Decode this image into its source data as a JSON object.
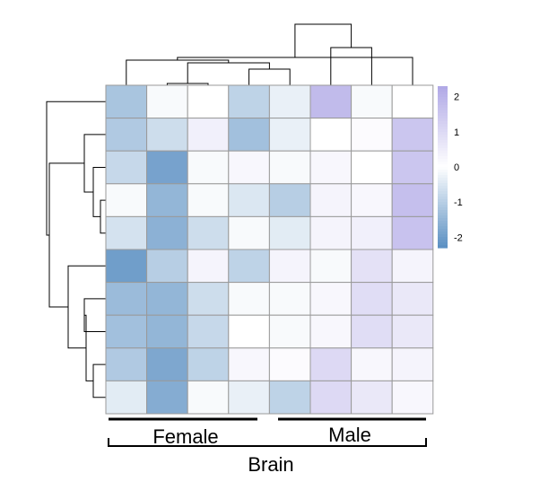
{
  "chart_data": {
    "type": "heatmap",
    "title": "",
    "xlabel": "",
    "ylabel": "",
    "rows": 10,
    "cols": 8,
    "values": [
      [
        -1.2,
        -0.1,
        0.0,
        -0.9,
        -0.3,
        1.8,
        -0.1,
        0.0
      ],
      [
        -1.1,
        -0.7,
        0.4,
        -1.3,
        -0.3,
        0.0,
        0.1,
        1.5
      ],
      [
        -0.8,
        -1.9,
        -0.1,
        0.2,
        -0.1,
        0.2,
        0.0,
        1.5
      ],
      [
        -0.1,
        -1.5,
        -0.1,
        -0.5,
        -1.0,
        0.3,
        0.2,
        1.7
      ],
      [
        -0.6,
        -1.6,
        -0.7,
        -0.1,
        -0.4,
        0.3,
        0.4,
        1.6
      ],
      [
        -2.0,
        -1.0,
        0.3,
        -0.9,
        0.3,
        -0.1,
        0.8,
        0.3
      ],
      [
        -1.4,
        -1.5,
        -0.7,
        -0.1,
        -0.1,
        0.2,
        0.9,
        0.6
      ],
      [
        -1.3,
        -1.5,
        -0.8,
        0.0,
        -0.1,
        0.2,
        0.9,
        0.6
      ],
      [
        -1.1,
        -1.8,
        -0.9,
        0.2,
        0.1,
        1.0,
        0.2,
        0.3
      ],
      [
        -0.4,
        -1.7,
        -0.1,
        -0.3,
        -0.9,
        1.0,
        0.6,
        0.2
      ]
    ],
    "color_scale": {
      "low": "#5a8fc2",
      "mid": "#ffffff",
      "high": "#b0a8e6",
      "range": [
        -2.3,
        2.3
      ],
      "ticks": [
        2,
        1,
        0,
        -1,
        -2
      ],
      "tick_labels": [
        "2",
        "1",
        "0",
        "-1",
        "-2"
      ]
    },
    "column_dendrogram": [
      [
        1,
        2
      ],
      [
        3,
        4
      ],
      [
        9,
        8
      ],
      [
        0,
        10
      ],
      [
        11,
        7
      ],
      [
        5,
        6
      ],
      [
        13,
        12
      ]
    ],
    "row_dendrogram": [
      [
        3,
        4
      ],
      [
        2,
        10
      ],
      [
        1,
        11
      ],
      [
        8,
        9
      ],
      [
        6,
        7
      ],
      [
        14,
        13
      ],
      [
        5,
        15
      ],
      [
        12,
        16
      ],
      [
        0,
        17
      ]
    ],
    "column_groups": [
      {
        "label": "Female",
        "from": 0,
        "to": 3
      },
      {
        "label": "Male",
        "from": 4,
        "to": 7
      }
    ],
    "outer_group": {
      "label": "Brain",
      "from": 0,
      "to": 7
    }
  }
}
